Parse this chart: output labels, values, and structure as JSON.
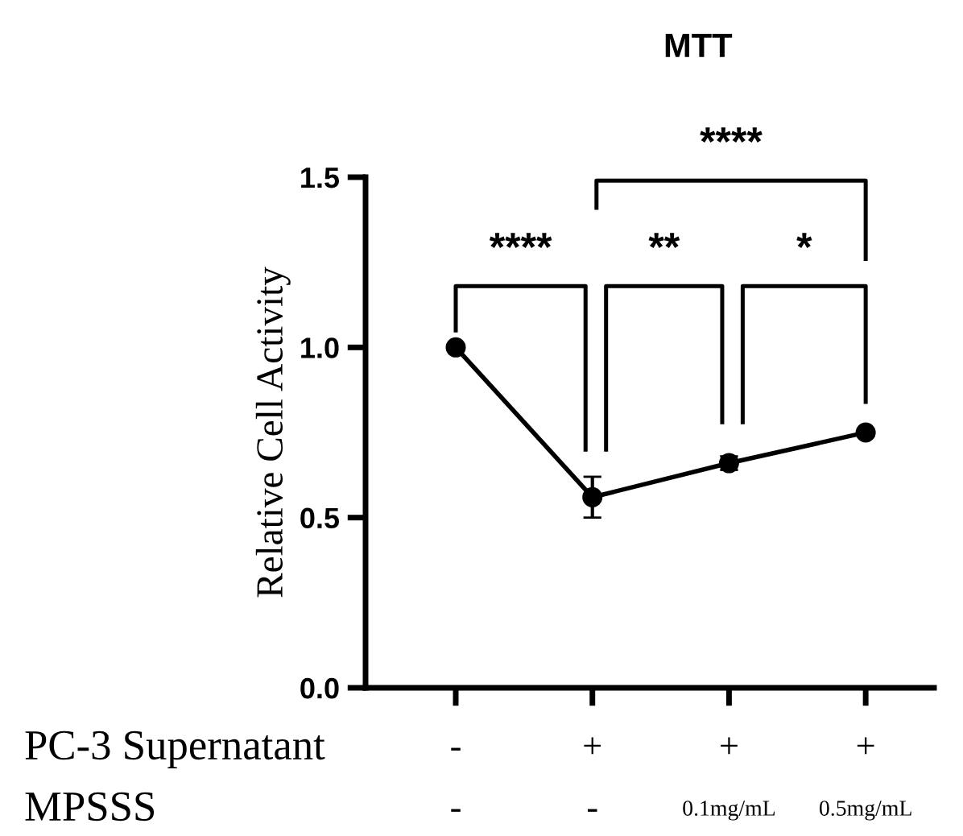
{
  "chart_data": {
    "type": "line",
    "title": "MTT",
    "ylabel": "Relative Cell Activity",
    "categories": [
      "-\n-",
      "+\n-",
      "+\n0.1mg/mL",
      "+\n0.5mg/mL"
    ],
    "series": [
      {
        "color": "#000000",
        "values": [
          1.0,
          0.56,
          0.66,
          0.75
        ],
        "errors": [
          null,
          0.06,
          0.02,
          0.01
        ]
      }
    ],
    "marker": "circle",
    "ylim": [
      0,
      1.5
    ],
    "yticks": [
      {
        "value": 0,
        "label": "0.0"
      },
      0.5,
      {
        "value": 1,
        "label": "1.0"
      },
      1.5
    ],
    "grid": false,
    "annotations": [
      "****",
      "**",
      "*",
      "****",
      "PC-3 Supernatant",
      "MPSSS"
    ]
  }
}
